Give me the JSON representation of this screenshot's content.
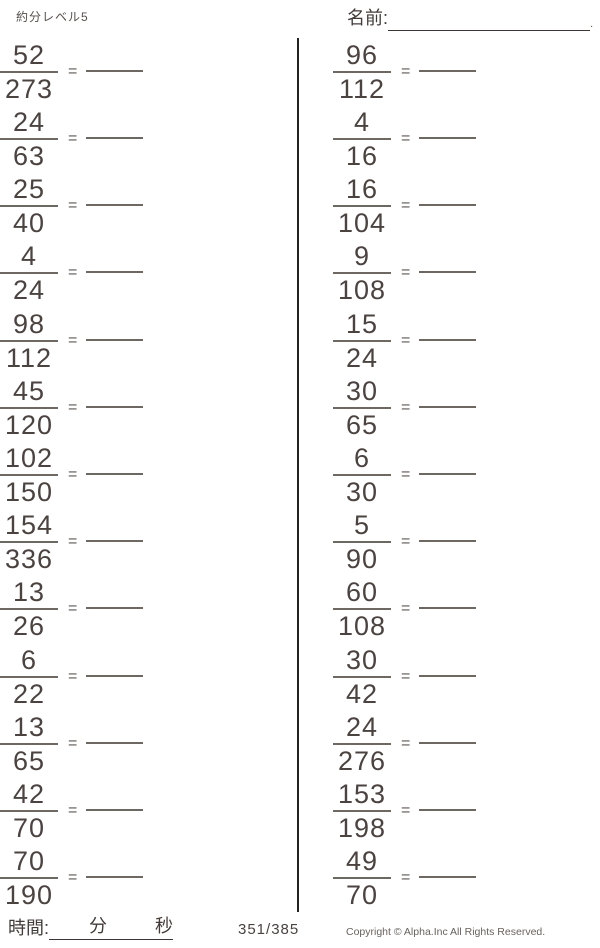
{
  "header": {
    "title": "約分レベル5",
    "name_label": "名前:",
    "name_trailing_period": "."
  },
  "equals_sign": "=",
  "problems": {
    "left": [
      {
        "numerator": "52",
        "denominator": "273"
      },
      {
        "numerator": "24",
        "denominator": "63"
      },
      {
        "numerator": "25",
        "denominator": "40"
      },
      {
        "numerator": "4",
        "denominator": "24"
      },
      {
        "numerator": "98",
        "denominator": "112"
      },
      {
        "numerator": "45",
        "denominator": "120"
      },
      {
        "numerator": "102",
        "denominator": "150"
      },
      {
        "numerator": "154",
        "denominator": "336"
      },
      {
        "numerator": "13",
        "denominator": "26"
      },
      {
        "numerator": "6",
        "denominator": "22"
      },
      {
        "numerator": "13",
        "denominator": "65"
      },
      {
        "numerator": "42",
        "denominator": "70"
      },
      {
        "numerator": "70",
        "denominator": "190"
      }
    ],
    "right": [
      {
        "numerator": "96",
        "denominator": "112"
      },
      {
        "numerator": "4",
        "denominator": "16"
      },
      {
        "numerator": "16",
        "denominator": "104"
      },
      {
        "numerator": "9",
        "denominator": "108"
      },
      {
        "numerator": "15",
        "denominator": "24"
      },
      {
        "numerator": "30",
        "denominator": "65"
      },
      {
        "numerator": "6",
        "denominator": "30"
      },
      {
        "numerator": "5",
        "denominator": "90"
      },
      {
        "numerator": "60",
        "denominator": "108"
      },
      {
        "numerator": "30",
        "denominator": "42"
      },
      {
        "numerator": "24",
        "denominator": "276"
      },
      {
        "numerator": "153",
        "denominator": "198"
      },
      {
        "numerator": "49",
        "denominator": "70"
      }
    ]
  },
  "footer": {
    "time_label": "時間:",
    "minutes_label": "分",
    "seconds_label": "秒",
    "page_indicator": "351/385",
    "copyright": "Copyright ©  Alpha.Inc All Rights Reserved."
  },
  "colors": {
    "text": "#4b4340",
    "line": "#6e6862",
    "divider": "#262220"
  }
}
